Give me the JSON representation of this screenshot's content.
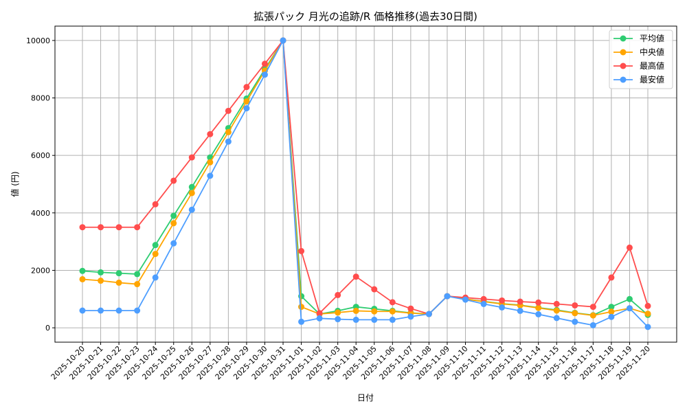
{
  "chart_data": {
    "type": "line",
    "title": "拡張パック 月光の追跡/R 価格推移(過去30日間)",
    "xlabel": "日付",
    "ylabel": "値 (円)",
    "ylim": [
      -500,
      10500
    ],
    "yticks": [
      0,
      2000,
      4000,
      6000,
      8000,
      10000
    ],
    "grid": true,
    "legend_position": "top-right",
    "x": [
      "2025-10-20",
      "2025-10-21",
      "2025-10-22",
      "2025-10-23",
      "2025-10-24",
      "2025-10-25",
      "2025-10-26",
      "2025-10-27",
      "2025-10-28",
      "2025-10-29",
      "2025-10-30",
      "2025-10-31",
      "2025-11-01",
      "2025-11-02",
      "2025-11-03",
      "2025-11-04",
      "2025-11-05",
      "2025-11-06",
      "2025-11-07",
      "2025-11-08",
      "2025-11-09",
      "2025-11-10",
      "2025-11-11",
      "2025-11-12",
      "2025-11-13",
      "2025-11-14",
      "2025-11-15",
      "2025-11-16",
      "2025-11-17",
      "2025-11-18",
      "2025-11-19",
      "2025-11-20"
    ],
    "series": [
      {
        "name": "平均値",
        "color": "#2ecc71",
        "values": [
          1980,
          1930,
          1900,
          1870,
          2880,
          3900,
          4900,
          5930,
          6950,
          7980,
          9000,
          10000,
          1100,
          480,
          590,
          730,
          660,
          590,
          520,
          480,
          1100,
          1000,
          920,
          840,
          790,
          700,
          620,
          520,
          440,
          730,
          1000,
          450
        ]
      },
      {
        "name": "中央値",
        "color": "#ffa500",
        "values": [
          1690,
          1640,
          1570,
          1520,
          2570,
          3640,
          4690,
          5760,
          6810,
          7880,
          8950,
          10000,
          730,
          480,
          530,
          590,
          570,
          570,
          510,
          480,
          1100,
          1000,
          910,
          830,
          780,
          690,
          600,
          510,
          430,
          560,
          680,
          490
        ]
      },
      {
        "name": "最高値",
        "color": "#ff4d4d",
        "values": [
          3500,
          3500,
          3500,
          3500,
          4300,
          5120,
          5930,
          6740,
          7550,
          8380,
          9190,
          10000,
          2670,
          510,
          1140,
          1780,
          1340,
          890,
          670,
          480,
          1100,
          1050,
          1000,
          950,
          910,
          880,
          830,
          780,
          730,
          1750,
          2790,
          760
        ]
      },
      {
        "name": "最安値",
        "color": "#4d9eff",
        "values": [
          600,
          600,
          600,
          600,
          1750,
          2940,
          4110,
          5290,
          6480,
          7640,
          8810,
          10000,
          210,
          330,
          300,
          280,
          280,
          280,
          390,
          480,
          1100,
          980,
          830,
          710,
          590,
          470,
          340,
          210,
          90,
          380,
          680,
          30
        ]
      }
    ]
  }
}
